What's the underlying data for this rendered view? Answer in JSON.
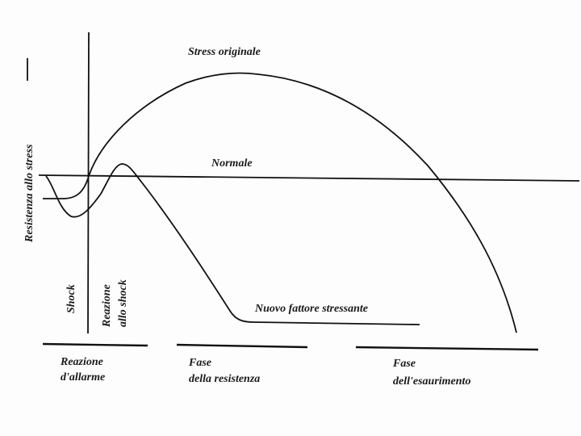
{
  "labels": {
    "y_axis": "Resistenza allo stress",
    "stress_originale": "Stress originale",
    "normale": "Normale",
    "nuovo_fattore": "Nuovo fattore stressante",
    "shock": "Shock",
    "reazione_shock_1": "Reazione",
    "reazione_shock_2": "allo shock"
  },
  "phases": [
    {
      "line1": "Reazione",
      "line2": "d'allarme"
    },
    {
      "line1": "Fase",
      "line2": "della resistenza"
    },
    {
      "line1": "Fase",
      "line2": "dell'esaurimento"
    }
  ]
}
